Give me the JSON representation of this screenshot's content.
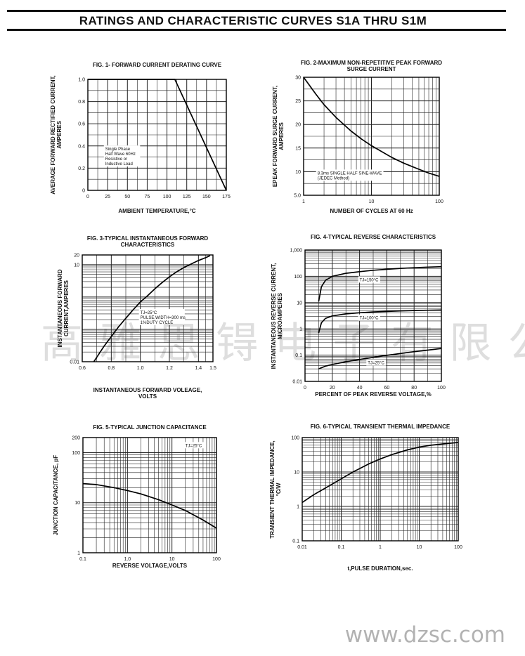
{
  "page": {
    "title": "RATINGS AND CHARACTERISTIC CURVES S1A THRU S1M",
    "watermark_cn": "高 雅 思 锝 电 子 有 限 公 司",
    "watermark_url": "www.dzsc.com"
  },
  "chart_data": [
    {
      "type": "line",
      "title": "FIG. 1- FORWARD CURRENT DERATING CURVE",
      "xlabel": "AMBIENT TEMPERATURE,°C",
      "ylabel": [
        "AVERAGE FORWARD RECTIFIED CURRENT,",
        "AMPERES"
      ],
      "xscale": "linear",
      "yscale": "linear",
      "xlim": [
        0,
        175
      ],
      "ylim": [
        0,
        1.0
      ],
      "xticks": [
        0,
        25,
        50,
        75,
        100,
        125,
        150,
        175
      ],
      "xtick_labels": [
        "0",
        "25",
        "50",
        "75",
        "100",
        "125",
        "150",
        "175"
      ],
      "yticks": [
        0,
        0.2,
        0.4,
        0.6,
        0.8,
        1.0
      ],
      "ytick_labels": [
        "0",
        "0.2",
        "0.4",
        "0.6",
        "0.8",
        "1.0"
      ],
      "grid": true,
      "series": [
        {
          "x": [
            0,
            110,
            175
          ],
          "y": [
            1.0,
            1.0,
            0
          ]
        }
      ],
      "annotations": [
        {
          "x": 22,
          "y": 0.36,
          "lines": [
            "Single Phase",
            "Half Wave 60Hz",
            "Resistive or",
            "Inductive Load"
          ]
        }
      ]
    },
    {
      "type": "line",
      "title": [
        "FIG. 2-MAXIMUM NON-REPETITIVE PEAK FORWARD",
        "SURGE CURRENT"
      ],
      "xlabel": "NUMBER OF CYCLES AT 60 Hz",
      "ylabel": [
        "EPEAK FORWARD SURGE CURRENT,",
        "AMPERES"
      ],
      "xscale": "log",
      "yscale": "linear",
      "xlim": [
        1,
        100
      ],
      "ylim": [
        5,
        30
      ],
      "xticks": [
        1,
        10,
        100
      ],
      "xtick_labels": [
        "1",
        "10",
        "100"
      ],
      "yticks": [
        5,
        10,
        15,
        20,
        25,
        30
      ],
      "ytick_labels": [
        "5.0",
        "10",
        "15",
        "20",
        "25",
        "30"
      ],
      "grid": true,
      "series": [
        {
          "x": [
            1,
            1.5,
            2,
            3,
            5,
            7,
            10,
            20,
            30,
            50,
            70,
            100
          ],
          "y": [
            30,
            26.5,
            24.2,
            21.5,
            18.6,
            17,
            15.5,
            13,
            11.8,
            10.5,
            9.7,
            9
          ]
        }
      ],
      "annotations": [
        {
          "x": 1.6,
          "y": 9.4,
          "lines": [
            "8.3ms SINGLE HALF SINE-WAVE",
            "(JEDEC Method)"
          ]
        }
      ]
    },
    {
      "type": "line",
      "title": [
        "FIG. 3-TYPICAL INSTANTANEOUS FORWARD",
        "CHARACTERISTICS"
      ],
      "xlabel": [
        "INSTANTANEOUS FORWARD VOLEAGE,",
        "VOLTS"
      ],
      "ylabel": [
        "INSTANTANEOUS FORWARD",
        "CURRENT,AMPERES"
      ],
      "xscale": "linear",
      "yscale": "log",
      "xlim": [
        0.6,
        1.5
      ],
      "ylim": [
        0.01,
        20
      ],
      "xticks": [
        0.6,
        0.8,
        1.0,
        1.2,
        1.4,
        1.5
      ],
      "xtick_labels": [
        "0.6",
        "0.8",
        "1.0",
        "1.2",
        "1.4",
        "1.5"
      ],
      "yticks": [
        0.01,
        10,
        20
      ],
      "ytick_labels": [
        "0.01",
        "10",
        "20"
      ],
      "grid": true,
      "series": [
        {
          "x": [
            0.68,
            0.75,
            0.8,
            0.85,
            0.9,
            0.95,
            1.0,
            1.05,
            1.1,
            1.15,
            1.2,
            1.25,
            1.3,
            1.35,
            1.4,
            1.45,
            1.48
          ],
          "y": [
            0.01,
            0.03,
            0.06,
            0.12,
            0.22,
            0.4,
            0.7,
            1.1,
            1.8,
            2.8,
            4.2,
            6,
            8.2,
            10.5,
            13.5,
            16.5,
            19
          ]
        }
      ],
      "annotations": [
        {
          "x": 1.0,
          "y": 0.3,
          "lines": [
            "TJ=25°C",
            "PULSE,WIDTH=300 ms",
            "1%DUTY CYCLE"
          ]
        }
      ]
    },
    {
      "type": "line",
      "title": "FIG. 4-TYPICAL REVERSE CHARACTERISTICS",
      "xlabel": "PERCENT OF PEAK REVERSE VOLTAGE,%",
      "ylabel": [
        "INSTANTANEOUS REVERSE CURRENT,",
        "MICROAMPERES"
      ],
      "xscale": "linear",
      "yscale": "log",
      "xlim": [
        0,
        100
      ],
      "ylim": [
        0.01,
        1000
      ],
      "xticks": [
        0,
        20,
        40,
        60,
        80,
        100
      ],
      "xtick_labels": [
        "0",
        "20",
        "40",
        "60",
        "80",
        "100"
      ],
      "yticks": [
        0.01,
        0.1,
        1,
        10,
        100,
        1000
      ],
      "ytick_labels": [
        "0.01",
        "0.1",
        "1",
        "10",
        "100",
        "1,000"
      ],
      "grid": true,
      "series": [
        {
          "name": "TJ=150°C",
          "x": [
            10,
            12,
            15,
            20,
            30,
            40,
            50,
            60,
            70,
            80,
            90,
            100
          ],
          "y": [
            11,
            40,
            70,
            100,
            130,
            150,
            170,
            185,
            200,
            212,
            222,
            232
          ]
        },
        {
          "name": "TJ=100°C",
          "x": [
            10,
            12,
            15,
            20,
            30,
            40,
            50,
            60,
            70,
            80,
            90,
            100
          ],
          "y": [
            0.7,
            1.7,
            2.5,
            3.1,
            3.7,
            4.1,
            4.4,
            4.6,
            4.8,
            5,
            5.1,
            5.2
          ]
        },
        {
          "name": "TJ=25°C",
          "x": [
            10,
            15,
            20,
            30,
            40,
            50,
            60,
            70,
            80,
            90,
            100
          ],
          "y": [
            0.03,
            0.038,
            0.044,
            0.056,
            0.068,
            0.082,
            0.098,
            0.115,
            0.135,
            0.155,
            0.18
          ]
        }
      ],
      "annotations": [
        {
          "x": 40,
          "y": 65,
          "lines": [
            "TJ=150°C"
          ]
        },
        {
          "x": 40,
          "y": 2.3,
          "lines": [
            "TJ=100°C"
          ]
        },
        {
          "x": 46,
          "y": 0.045,
          "lines": [
            "TJ=25°C"
          ]
        }
      ]
    },
    {
      "type": "line",
      "title": "FIG. 5-TYPICAL JUNCTION CAPACITANCE",
      "xlabel": "REVERSE VOLTAGE,VOLTS",
      "ylabel": "JUNCTION CAPACITANCE, pF",
      "xscale": "log",
      "yscale": "log",
      "xlim": [
        0.1,
        100
      ],
      "ylim": [
        1,
        200
      ],
      "xticks": [
        0.1,
        1,
        10,
        100
      ],
      "xtick_labels": [
        "0.1",
        "1.0",
        "10",
        "100"
      ],
      "yticks": [
        1,
        10,
        100,
        200
      ],
      "ytick_labels": [
        "1",
        "10",
        "100",
        "200"
      ],
      "grid": true,
      "series": [
        {
          "x": [
            0.1,
            0.2,
            0.5,
            1,
            2,
            5,
            10,
            20,
            50,
            100
          ],
          "y": [
            24,
            23,
            20,
            17.5,
            15,
            11.5,
            9,
            7,
            4.5,
            3.1
          ]
        }
      ],
      "annotations": [
        {
          "x": 20,
          "y": 130,
          "lines": [
            "TJ=25°C"
          ]
        }
      ]
    },
    {
      "type": "line",
      "title": "FIG. 6-TYPICAL TRANSIENT THERMAL IMPEDANCE",
      "xlabel": "t,PULSE DURATION,sec.",
      "ylabel": [
        "TRANSIENT THERMAL IMPEDANCE,",
        "°C/W"
      ],
      "xscale": "log",
      "yscale": "log",
      "xlim": [
        0.01,
        100
      ],
      "ylim": [
        0.1,
        100
      ],
      "xticks": [
        0.01,
        0.1,
        1,
        10,
        100
      ],
      "xtick_labels": [
        "0.01",
        "0.1",
        "1",
        "10",
        "100"
      ],
      "yticks": [
        0.1,
        1,
        10,
        100
      ],
      "ytick_labels": [
        "0.1",
        "1",
        "10",
        "100"
      ],
      "grid": true,
      "series": [
        {
          "x": [
            0.01,
            0.02,
            0.05,
            0.1,
            0.2,
            0.5,
            1,
            2,
            5,
            10,
            20,
            50,
            100
          ],
          "y": [
            1.3,
            2.2,
            4,
            6.3,
            10,
            17,
            24,
            32,
            44,
            53,
            60,
            67,
            72
          ]
        }
      ]
    }
  ]
}
